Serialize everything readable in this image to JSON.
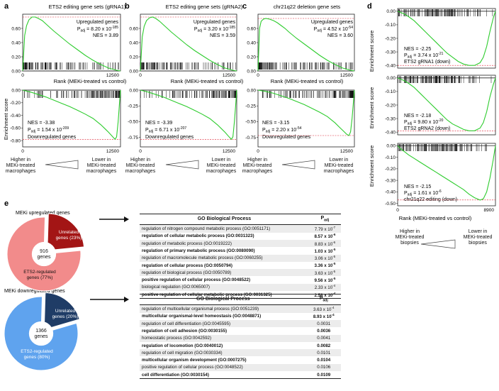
{
  "panels": {
    "a": {
      "letter": "a",
      "title": "ETS2 editing gene sets (gRNA1)"
    },
    "b": {
      "letter": "b",
      "title": "ETS2 editing gene sets (gRNA2)"
    },
    "c": {
      "letter": "c",
      "title": "chr21q22 deletion gene sets"
    },
    "d": {
      "letter": "d"
    },
    "e": {
      "letter": "e"
    }
  },
  "labels": {
    "ylabel": "Enrichment score",
    "xlabel": "Rank (MEKi-treated vs control)",
    "up_genes": "Upregulated genes",
    "down_genes": "Downregulated genes",
    "higher_macro": [
      "Higher in",
      "MEKi-treated",
      "macrophages"
    ],
    "lower_macro": [
      "Lower in",
      "MEKi-treated",
      "macrophages"
    ],
    "higher_biopsy": [
      "Higher in",
      "MEKi-treated",
      "biopsies"
    ],
    "lower_biopsy": [
      "Lower in",
      "MEKi-treated",
      "biopsies"
    ]
  },
  "stats": {
    "a_up": {
      "padj": "8.20 x 10",
      "exp": "-185",
      "nes": "NES = 3.89"
    },
    "a_down": {
      "nes": "NES = -3.38",
      "padj": "1.54 x 10",
      "exp": "-209"
    },
    "b_up": {
      "padj": "3.20 x 10",
      "exp": "-185",
      "nes": "NES = 3.59"
    },
    "b_down": {
      "nes": "NES = -3.39",
      "padj": "6.71 x 10",
      "exp": "-207"
    },
    "c_up": {
      "padj": "4.52 x 10",
      "exp": "-54",
      "nes": "NES = 3.60"
    },
    "c_down": {
      "nes": "NES = -3.15",
      "padj": "2.20 x 10",
      "exp": "-54"
    },
    "d1": {
      "nes": "NES = -2.25",
      "padj": "3.74 x 10",
      "exp": "-21",
      "set": "ETS2 gRNA1 (down)"
    },
    "d2": {
      "nes": "NES = -2.18",
      "padj": "9.80 x 10",
      "exp": "-20",
      "set": "ETS2 gRNA2 (down)"
    },
    "d3": {
      "nes": "NES = -2.15",
      "padj": "1.61 x 10",
      "exp": "-6",
      "set": "chr21q22 editing (down)"
    }
  },
  "chart_data": [
    {
      "type": "line",
      "panel": "a-upper",
      "ylabel": "Enrichment score",
      "xlim": [
        0,
        12500
      ],
      "ylim": [
        0,
        0.8
      ],
      "yticks": [
        0,
        0.2,
        0.4,
        0.6
      ],
      "xticks": [
        0,
        12500
      ],
      "x": [
        0,
        250,
        500,
        800,
        1200,
        1600,
        2000,
        2500,
        3000,
        3500,
        4000,
        5000,
        6000,
        7000,
        8000,
        9000,
        10000,
        11000,
        12000,
        12500
      ],
      "y": [
        0,
        0.5,
        0.64,
        0.72,
        0.76,
        0.76,
        0.74,
        0.71,
        0.66,
        0.61,
        0.56,
        0.47,
        0.38,
        0.3,
        0.22,
        0.15,
        0.09,
        0.04,
        0.01,
        0
      ]
    },
    {
      "type": "line",
      "panel": "a-lower",
      "xlabel": "Rank (MEKi-treated vs control)",
      "xlim": [
        0,
        12500
      ],
      "ylim": [
        -0.9,
        0
      ],
      "yticks": [
        0,
        -0.2,
        -0.4,
        -0.6,
        -0.8
      ],
      "xticks": [
        0,
        12500
      ],
      "x": [
        0,
        1000,
        2000,
        3000,
        4000,
        5000,
        6000,
        7000,
        8000,
        9000,
        10000,
        10500,
        11000,
        11500,
        11800,
        12000,
        12200,
        12350,
        12500
      ],
      "y": [
        0,
        -0.03,
        -0.07,
        -0.11,
        -0.16,
        -0.21,
        -0.26,
        -0.32,
        -0.38,
        -0.45,
        -0.55,
        -0.61,
        -0.67,
        -0.74,
        -0.78,
        -0.74,
        -0.5,
        -0.25,
        0
      ]
    },
    {
      "type": "line",
      "panel": "b-upper",
      "xlim": [
        0,
        12500
      ],
      "ylim": [
        0,
        0.8
      ],
      "yticks": [
        0,
        0.2,
        0.4,
        0.6
      ],
      "xticks": [
        0,
        12500
      ],
      "x": [
        0,
        250,
        500,
        800,
        1200,
        1600,
        2000,
        2500,
        3000,
        3500,
        4000,
        5000,
        6000,
        7000,
        8000,
        9000,
        10000,
        11000,
        12000,
        12500
      ],
      "y": [
        0,
        0.48,
        0.63,
        0.71,
        0.75,
        0.76,
        0.74,
        0.7,
        0.65,
        0.6,
        0.55,
        0.46,
        0.37,
        0.29,
        0.22,
        0.15,
        0.09,
        0.04,
        0.01,
        0
      ]
    },
    {
      "type": "line",
      "panel": "b-lower",
      "xlabel": "Rank (MEKi-treated vs control)",
      "xlim": [
        0,
        12500
      ],
      "ylim": [
        -0.9,
        0
      ],
      "yticks": [
        0,
        -0.25,
        -0.5,
        -0.75
      ],
      "xticks": [
        0,
        12500
      ],
      "x": [
        0,
        1000,
        2000,
        3000,
        4000,
        5000,
        6000,
        7000,
        8000,
        9000,
        10000,
        10500,
        11000,
        11500,
        11800,
        12000,
        12200,
        12350,
        12500
      ],
      "y": [
        0,
        -0.03,
        -0.07,
        -0.11,
        -0.16,
        -0.21,
        -0.26,
        -0.32,
        -0.38,
        -0.45,
        -0.55,
        -0.61,
        -0.67,
        -0.74,
        -0.78,
        -0.74,
        -0.5,
        -0.25,
        0
      ]
    },
    {
      "type": "line",
      "panel": "c-upper",
      "xlim": [
        0,
        12500
      ],
      "ylim": [
        0,
        0.8
      ],
      "yticks": [
        0,
        0.2,
        0.4,
        0.6
      ],
      "xticks": [
        0,
        12500
      ],
      "x": [
        0,
        200,
        400,
        700,
        1000,
        1500,
        2000,
        2500,
        3000,
        3500,
        4000,
        5000,
        6000,
        7000,
        8000,
        9000,
        10000,
        11000,
        12000,
        12500
      ],
      "y": [
        0,
        0.6,
        0.7,
        0.73,
        0.74,
        0.73,
        0.71,
        0.68,
        0.64,
        0.6,
        0.55,
        0.46,
        0.38,
        0.3,
        0.22,
        0.15,
        0.09,
        0.04,
        0.01,
        0
      ]
    },
    {
      "type": "line",
      "panel": "c-lower",
      "xlabel": "Rank (MEKi-treated vs control)",
      "xlim": [
        0,
        12500
      ],
      "ylim": [
        -0.9,
        0
      ],
      "yticks": [
        0,
        -0.25,
        -0.5,
        -0.75
      ],
      "xticks": [
        0,
        12500
      ],
      "x": [
        0,
        1000,
        2000,
        3000,
        4000,
        5000,
        6000,
        7000,
        8000,
        9000,
        10000,
        10500,
        11000,
        11500,
        11800,
        12000,
        12200,
        12350,
        12500
      ],
      "y": [
        0,
        -0.02,
        -0.05,
        -0.09,
        -0.13,
        -0.18,
        -0.23,
        -0.29,
        -0.35,
        -0.42,
        -0.52,
        -0.58,
        -0.64,
        -0.7,
        -0.72,
        -0.66,
        -0.45,
        -0.22,
        0
      ]
    },
    {
      "type": "line",
      "panel": "d-1",
      "xlim": [
        0,
        8900
      ],
      "ylim": [
        -0.42,
        0.02
      ],
      "yticks": [
        0,
        -0.1,
        -0.2,
        -0.3,
        -0.4
      ],
      "xticks": [
        0,
        8900
      ],
      "x": [
        0,
        300,
        600,
        1000,
        1500,
        2000,
        2500,
        3000,
        3500,
        4000,
        4500,
        5000,
        5500,
        6000,
        6500,
        7000,
        7500,
        7800,
        8100,
        8400,
        8700,
        8900
      ],
      "y": [
        0,
        -0.01,
        -0.02,
        -0.04,
        -0.07,
        -0.11,
        -0.15,
        -0.19,
        -0.23,
        -0.27,
        -0.31,
        -0.34,
        -0.37,
        -0.39,
        -0.4,
        -0.4,
        -0.38,
        -0.34,
        -0.26,
        -0.15,
        -0.05,
        0
      ]
    },
    {
      "type": "line",
      "panel": "d-2",
      "xlim": [
        0,
        8900
      ],
      "ylim": [
        -0.42,
        0.02
      ],
      "yticks": [
        0,
        -0.1,
        -0.2,
        -0.3,
        -0.4
      ],
      "xticks": [
        0,
        8900
      ],
      "x": [
        0,
        300,
        600,
        1000,
        1500,
        2000,
        2500,
        3000,
        3500,
        4000,
        4500,
        5000,
        5500,
        6000,
        6500,
        7000,
        7500,
        7800,
        8100,
        8400,
        8700,
        8900
      ],
      "y": [
        0,
        -0.01,
        -0.02,
        -0.04,
        -0.07,
        -0.11,
        -0.15,
        -0.19,
        -0.23,
        -0.27,
        -0.31,
        -0.34,
        -0.36,
        -0.38,
        -0.39,
        -0.39,
        -0.37,
        -0.33,
        -0.25,
        -0.14,
        -0.05,
        0
      ]
    },
    {
      "type": "line",
      "panel": "d-3",
      "xlabel": "Rank (MEKi-treated vs control)",
      "xlim": [
        0,
        8900
      ],
      "ylim": [
        -0.52,
        0.02
      ],
      "yticks": [
        0,
        -0.1,
        -0.2,
        -0.3,
        -0.4,
        -0.5
      ],
      "xticks": [
        0,
        8900
      ],
      "x": [
        0,
        300,
        600,
        1000,
        1500,
        2000,
        2500,
        3000,
        3500,
        4000,
        4500,
        5000,
        5500,
        6000,
        6500,
        7000,
        7500,
        7800,
        8100,
        8400,
        8700,
        8900
      ],
      "y": [
        0,
        -0.03,
        -0.05,
        -0.08,
        -0.11,
        -0.14,
        -0.17,
        -0.2,
        -0.23,
        -0.26,
        -0.29,
        -0.32,
        -0.35,
        -0.38,
        -0.42,
        -0.45,
        -0.47,
        -0.46,
        -0.4,
        -0.28,
        -0.12,
        0
      ]
    },
    {
      "type": "pie",
      "panel": "e-up",
      "title": "MEKi upregulated genes",
      "center": "916 genes",
      "labels": [
        "Unrelated genes (23%)",
        "ETS2-regulated genes (77%)"
      ],
      "values": [
        23,
        77
      ],
      "colors": [
        "#a31515",
        "#f28b8b"
      ]
    },
    {
      "type": "pie",
      "panel": "e-down",
      "title": "MEKi downregulated genes",
      "center": "1366 genes",
      "labels": [
        "Unrelated genes (20%)",
        "ETS2-regulated genes (80%)"
      ],
      "values": [
        20,
        80
      ],
      "colors": [
        "#1f3c66",
        "#5fa3ee"
      ]
    }
  ],
  "go_up": {
    "header": "GO Biological Process",
    "padj_header": "P",
    "rows": [
      {
        "process": "regulation of nitrogen compound metabolic process (GO:0051171)",
        "padj": "7.79 x 10",
        "exp": "-7"
      },
      {
        "process": "regulation of cellular metabolic process (GO:0031323)",
        "padj": "8.57 x 10",
        "exp": "-6"
      },
      {
        "process": "regulation of metabolic process (GO:0019222)",
        "padj": "8.83 x 10",
        "exp": "-6"
      },
      {
        "process": "regulation of primary metabolic process (GO:0080090)",
        "padj": "1.03 x 10",
        "exp": "-5"
      },
      {
        "process": "regulation of macromolecule metabolic process (GO:0060255)",
        "padj": "3.06 x 10",
        "exp": "-5"
      },
      {
        "process": "regulation of cellular process (GO:0050794)",
        "padj": "3.36 x 10",
        "exp": "-5"
      },
      {
        "process": "regulation of biological process (GO:0050789)",
        "padj": "3.63 x 10",
        "exp": "-5"
      },
      {
        "process": "positive regulation of cellular process (GO:0048522)",
        "padj": "9.56 x 10",
        "exp": "-5"
      },
      {
        "process": "biological regulation (GO:0065007)",
        "padj": "2.33 x 10",
        "exp": "-4"
      },
      {
        "process": "positive regulation of cellular metabolic process (GO:0031325)",
        "padj": "2.58 x 10",
        "exp": "-4"
      }
    ]
  },
  "go_down": {
    "header": "GO Biological Process",
    "padj_header": "P",
    "rows": [
      {
        "process": "regulation of multicellular organismal process (GO:0051239)",
        "padj": "3.63 x 10",
        "exp": "-4"
      },
      {
        "process": "multicellular organismal-level homeostasis (GO:0048871)",
        "padj": "8.93 x 10",
        "exp": "-4"
      },
      {
        "process": "regulation of cell differentiation (GO:0045595)",
        "padj": "0.0031",
        "exp": ""
      },
      {
        "process": "regulation of cell adhesion (GO:0030155)",
        "padj": "0.0036",
        "exp": ""
      },
      {
        "process": "homeostatic process (GO:0042592)",
        "padj": "0.0041",
        "exp": ""
      },
      {
        "process": "regulation of locomotion (GO:0040012)",
        "padj": "0.0082",
        "exp": ""
      },
      {
        "process": "regulation of cell migration (GO:0030334)",
        "padj": "0.0101",
        "exp": ""
      },
      {
        "process": "multicellular organism development (GO:0007275)",
        "padj": "0.0104",
        "exp": ""
      },
      {
        "process": "positive regulation of cellular process (GO:0048522)",
        "padj": "0.0106",
        "exp": ""
      },
      {
        "process": "cell differentiation (GO:0030154)",
        "padj": "0.0109",
        "exp": ""
      }
    ]
  }
}
